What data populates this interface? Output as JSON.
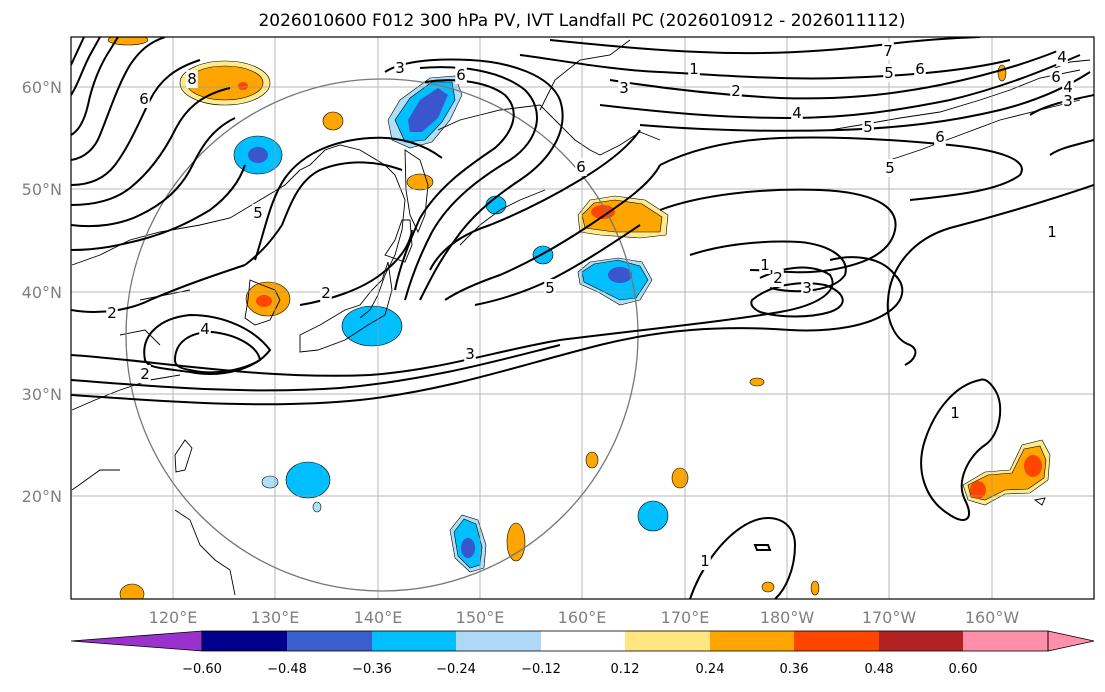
{
  "title": "2026010600 F012 300 hPa PV, IVT Landfall PC (2026010912 - 2026011112)",
  "map": {
    "lat_labels": [
      "60°N",
      "50°N",
      "40°N",
      "30°N",
      "20°N"
    ],
    "lon_labels": [
      "120°E",
      "130°E",
      "140°E",
      "150°E",
      "160°E",
      "170°E",
      "180°W",
      "170°W",
      "160°W"
    ],
    "contour_labels": [
      "8",
      "6",
      "5",
      "3",
      "6",
      "3",
      "1",
      "2",
      "4",
      "5",
      "6",
      "7",
      "5",
      "6",
      "4",
      "6",
      "5",
      "2",
      "2",
      "4",
      "2",
      "3",
      "5",
      "6",
      "1",
      "2",
      "3",
      "1",
      "1",
      "1",
      "4",
      "3"
    ],
    "palette": {
      "neg_deep": "#3a56cf",
      "neg_mid": "#00bfff",
      "neg_light": "#aee0f7",
      "pos_light": "#ffeb8c",
      "pos_mid": "#ffa500",
      "pos_deep": "#ff4500"
    }
  },
  "colorbar": {
    "ticks": [
      "−0.60",
      "−0.48",
      "−0.36",
      "−0.24",
      "−0.12",
      "0.12",
      "0.24",
      "0.36",
      "0.48",
      "0.60"
    ],
    "colors": [
      "#9932cc",
      "#00008b",
      "#3a5fcd",
      "#00bfff",
      "#add8f6",
      "#ffffff",
      "#ffe680",
      "#ffa500",
      "#ff4500",
      "#b22222",
      "#ff8fab"
    ]
  }
}
